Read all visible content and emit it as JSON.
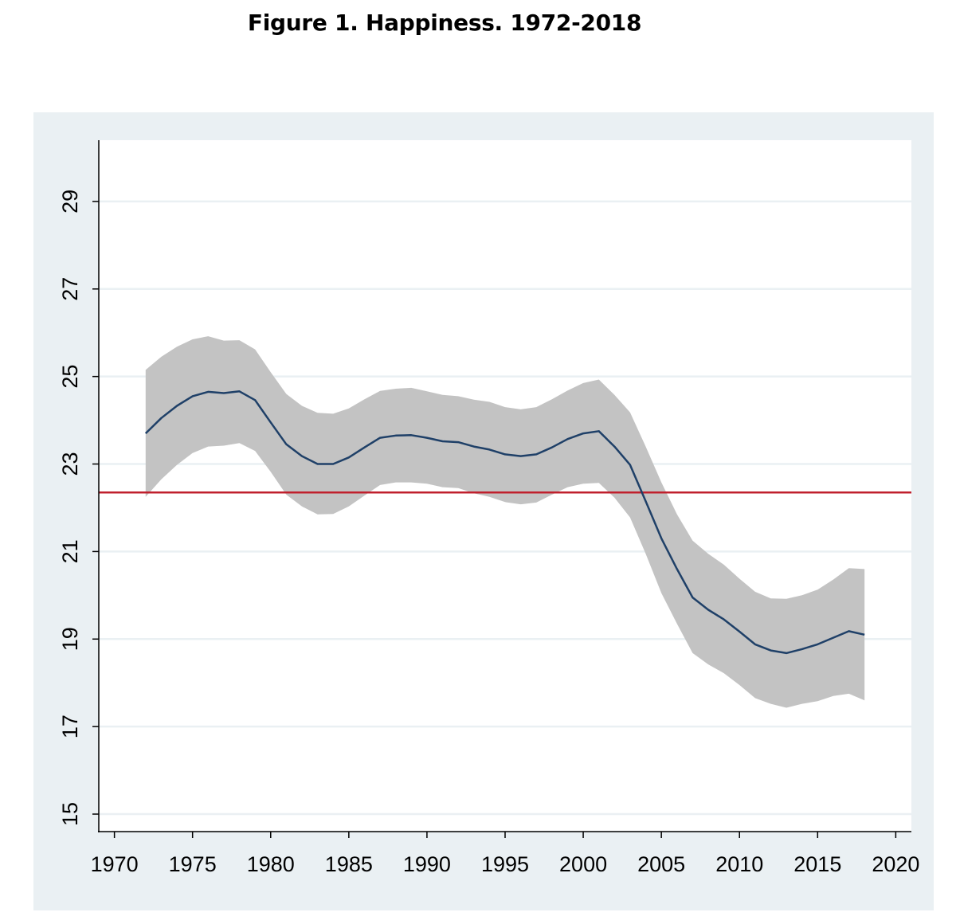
{
  "figure": {
    "title": "Figure 1.  Happiness. 1972-2018"
  },
  "colors": {
    "outer_background": "#EAF0F3",
    "plot_background": "#FFFFFF",
    "grid": "#EAF0F3",
    "trend_line": "#1F4068",
    "confidence_band": "#C3C3C3",
    "reference_line": "#C0202D",
    "axis": "#000000"
  },
  "chart_data": {
    "type": "line",
    "title": "Figure 1.  Happiness. 1972-2018",
    "xlabel": "",
    "ylabel": "",
    "xlim": [
      1969,
      2021
    ],
    "ylim": [
      14.6,
      30.4
    ],
    "xticks": [
      1970,
      1975,
      1980,
      1985,
      1990,
      1995,
      2000,
      2005,
      2010,
      2015,
      2020
    ],
    "yticks": [
      15,
      17,
      19,
      21,
      23,
      25,
      27,
      29
    ],
    "grid": true,
    "legend": "none",
    "reference_line": {
      "y": 22.35
    },
    "x": [
      1972,
      1973,
      1974,
      1975,
      1976,
      1977,
      1978,
      1979,
      1980,
      1981,
      1982,
      1983,
      1984,
      1985,
      1986,
      1987,
      1988,
      1989,
      1990,
      1991,
      1992,
      1993,
      1994,
      1995,
      1996,
      1997,
      1998,
      1999,
      2000,
      2001,
      2002,
      2003,
      2004,
      2005,
      2006,
      2007,
      2008,
      2009,
      2010,
      2011,
      2012,
      2013,
      2014,
      2015,
      2016,
      2017,
      2018
    ],
    "series": [
      {
        "values": [
          23.7,
          24.05,
          24.33,
          24.55,
          24.65,
          24.62,
          24.66,
          24.46,
          23.95,
          23.45,
          23.18,
          23.0,
          23.0,
          23.15,
          23.38,
          23.6,
          23.65,
          23.66,
          23.6,
          23.52,
          23.5,
          23.4,
          23.33,
          23.22,
          23.18,
          23.22,
          23.38,
          23.57,
          23.7,
          23.75,
          23.4,
          22.98,
          22.15,
          21.3,
          20.6,
          19.95,
          19.67,
          19.45,
          19.17,
          18.88,
          18.74,
          18.68,
          18.77,
          18.88,
          19.03,
          19.18,
          19.1
        ]
      }
    ],
    "confidence_band": {
      "upper": [
        25.15,
        25.45,
        25.68,
        25.85,
        25.92,
        25.82,
        25.83,
        25.62,
        25.1,
        24.6,
        24.33,
        24.17,
        24.15,
        24.27,
        24.48,
        24.67,
        24.72,
        24.74,
        24.66,
        24.58,
        24.55,
        24.47,
        24.42,
        24.3,
        24.25,
        24.3,
        24.48,
        24.68,
        24.85,
        24.93,
        24.58,
        24.18,
        23.4,
        22.58,
        21.85,
        21.25,
        20.95,
        20.7,
        20.38,
        20.08,
        19.93,
        19.92,
        20.0,
        20.13,
        20.36,
        20.62,
        20.6
      ],
      "lower": [
        22.25,
        22.65,
        22.98,
        23.25,
        23.4,
        23.42,
        23.48,
        23.3,
        22.82,
        22.3,
        22.03,
        21.85,
        21.86,
        22.03,
        22.28,
        22.52,
        22.58,
        22.58,
        22.55,
        22.47,
        22.45,
        22.33,
        22.25,
        22.13,
        22.08,
        22.12,
        22.3,
        22.47,
        22.55,
        22.57,
        22.23,
        21.78,
        20.95,
        20.05,
        19.35,
        18.68,
        18.42,
        18.22,
        17.95,
        17.65,
        17.52,
        17.43,
        17.52,
        17.58,
        17.7,
        17.75,
        17.6
      ]
    }
  }
}
